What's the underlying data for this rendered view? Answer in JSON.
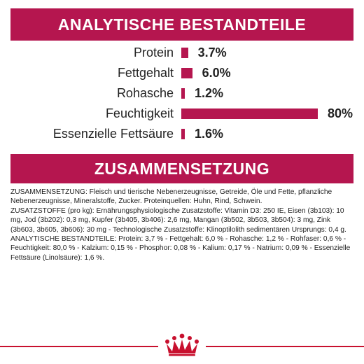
{
  "analytical": {
    "title": "ANALYTISCHE BESTANDTEILE",
    "nutrients": [
      {
        "label": "Protein",
        "value": "3.7%",
        "percent": 3.7
      },
      {
        "label": "Fettgehalt",
        "value": "6.0%",
        "percent": 6.0
      },
      {
        "label": "Rohasche",
        "value": "1.2%",
        "percent": 1.2
      },
      {
        "label": "Feuchtigkeit",
        "value": "80%",
        "percent": 80
      },
      {
        "label": "Essenzielle Fettsäure",
        "value": "1.6%",
        "percent": 1.6
      }
    ]
  },
  "composition": {
    "title": "ZUSAMMENSETZUNG",
    "paragraphs": [
      "ZUSAMMENSETZUNG: Fleisch und tierische Nebenerzeugnisse, Getreide, Öle und Fette, pflanzliche Nebenerzeugnisse, Mineralstoffe, Zucker. Proteinquellen: Huhn, Rind, Schwein.",
      "ZUSATZSTOFFE (pro kg): Ernährungsphysiologische Zusatzstoffe: Vitamin D3: 250 IE, Eisen (3b103): 10 mg, Jod (3b202): 0,3 mg, Kupfer (3b405, 3b406): 2,6 mg, Mangan (3b502, 3b503, 3b504): 3 mg, Zink (3b603, 3b605, 3b606): 30 mg - Technologische Zusatzstoffe: Klinoptilolith sedimentären Ursprungs: 0,4 g.",
      "ANALYTISCHE BESTANDTEILE: Protein: 3,7 % - Fettgehalt: 6,0 % - Rohasche: 1,2 % - Rohfaser: 0,6 % - Feuchtigkeit: 80,0 % - Kalzium: 0,15 % - Phosphor: 0,08 % - Kalium: 0,17 % - Natrium: 0,09 % - Essenzielle Fettsäure (Linolsäure): 1,6 %."
    ]
  },
  "colors": {
    "accent": "#b5164f",
    "footer_line": "#c8102e",
    "text": "#222222"
  },
  "footer": {
    "logo_icon": "royal-canin-crown-icon"
  }
}
